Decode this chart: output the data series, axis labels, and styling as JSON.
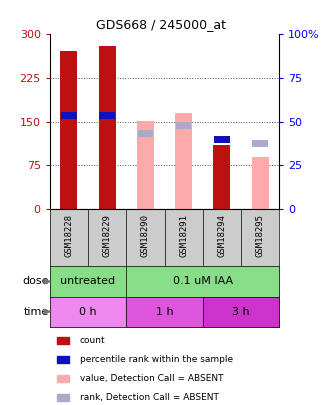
{
  "title": "GDS668 / 245000_at",
  "samples": [
    "GSM18228",
    "GSM18229",
    "GSM18290",
    "GSM18291",
    "GSM18294",
    "GSM18295"
  ],
  "count_values": [
    272,
    280,
    null,
    null,
    110,
    null
  ],
  "rank_values": [
    160,
    160,
    null,
    null,
    120,
    null
  ],
  "absent_value_values": [
    null,
    null,
    152,
    165,
    null,
    90
  ],
  "absent_rank_values": [
    null,
    null,
    130,
    143,
    null,
    113
  ],
  "ylim": [
    0,
    300
  ],
  "y2lim": [
    0,
    100
  ],
  "yticks": [
    0,
    75,
    150,
    225,
    300
  ],
  "ytick_labels": [
    "0",
    "75",
    "150",
    "225",
    "300"
  ],
  "y2ticks": [
    0,
    25,
    50,
    75,
    100
  ],
  "y2tick_labels": [
    "0",
    "25",
    "50",
    "75",
    "100%"
  ],
  "grid_lines": [
    75,
    150,
    225
  ],
  "dose_labels": [
    {
      "label": "untreated",
      "start": 0,
      "end": 2
    },
    {
      "label": "0.1 uM IAA",
      "start": 2,
      "end": 6
    }
  ],
  "time_labels": [
    {
      "label": "0 h",
      "start": 0,
      "end": 2,
      "color": "#ee88ee"
    },
    {
      "label": "1 h",
      "start": 2,
      "end": 4,
      "color": "#dd55dd"
    },
    {
      "label": "3 h",
      "start": 4,
      "end": 6,
      "color": "#cc33cc"
    }
  ],
  "dose_bg_color": "#88dd88",
  "sample_bg_color": "#cccccc",
  "bar_width": 0.45,
  "red_color": "#bb1111",
  "blue_color": "#1111bb",
  "pink_color": "#ffaaaa",
  "lightblue_color": "#aaaacc",
  "legend_items": [
    {
      "color": "#bb1111",
      "label": "count"
    },
    {
      "color": "#1111bb",
      "label": "percentile rank within the sample"
    },
    {
      "color": "#ffaaaa",
      "label": "value, Detection Call = ABSENT"
    },
    {
      "color": "#aaaacc",
      "label": "rank, Detection Call = ABSENT"
    }
  ]
}
